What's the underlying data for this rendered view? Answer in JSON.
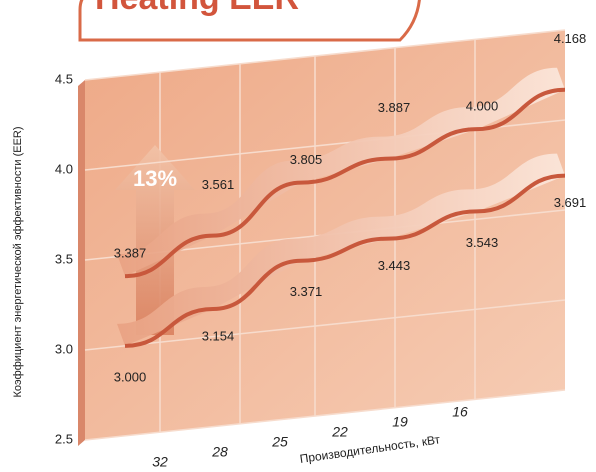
{
  "chart_data": {
    "type": "line",
    "title": "Heating EER",
    "y_label": "Коэффициент энергетической эффективности (EER)",
    "x_label": "Производительность, кВт",
    "annotation": "13%",
    "categories": [
      "32",
      "28",
      "25",
      "22",
      "19",
      "16"
    ],
    "series": [
      {
        "color": "#c8583c",
        "values": [
          3.387,
          3.561,
          3.805,
          3.887,
          4.0,
          4.168
        ],
        "value_labels": [
          "3.387",
          "3.561",
          "3.805",
          "3.887",
          "4.000",
          "4.168"
        ]
      },
      {
        "color": "#c8583c",
        "values": [
          3.0,
          3.154,
          3.371,
          3.443,
          3.543,
          3.691
        ],
        "value_labels": [
          "3.000",
          "3.154",
          "3.371",
          "3.443",
          "3.543",
          "3.691"
        ]
      }
    ],
    "ylim": [
      2.5,
      4.5
    ],
    "yticks": [
      2.5,
      {
        "value": 3,
        "label": "3.0"
      },
      3.5,
      {
        "value": 4,
        "label": "4.0"
      },
      4.5
    ],
    "grid": true
  }
}
